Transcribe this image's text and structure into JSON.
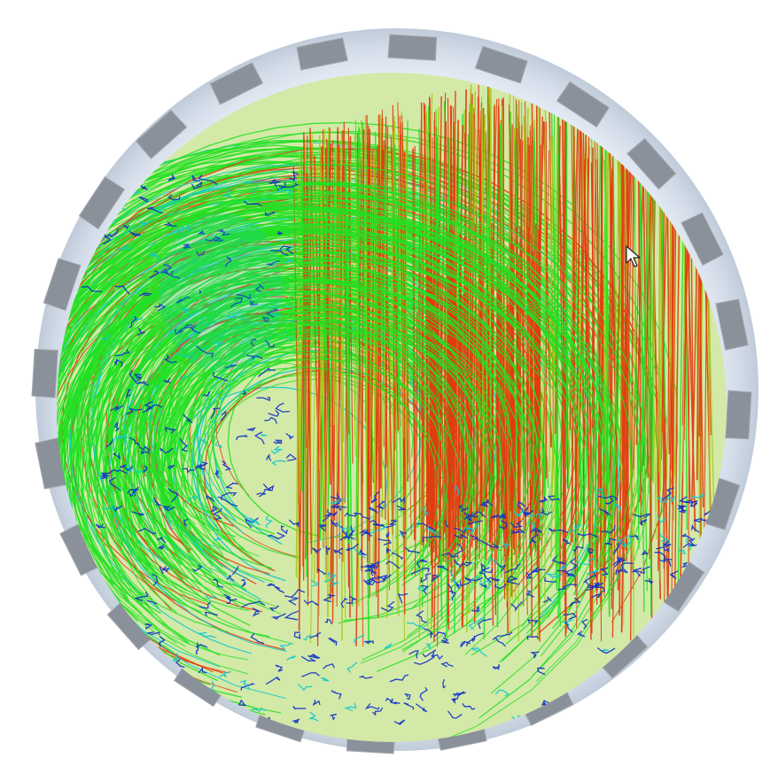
{
  "scene": {
    "kind": "cfd-streamline-visualization",
    "description_type": "3D render, no text",
    "housing": {
      "tooth_count": 24,
      "ring_color": "#dfe7f1",
      "ring_shadow": "#c4cfdd",
      "tooth_color": "#8b919a",
      "tooth_highlight": "#a4a9b0"
    },
    "streamlines": {
      "color_map": [
        "#1030c8",
        "#10c8d0",
        "#22e022",
        "#a8c818",
        "#e23b10"
      ],
      "regions": [
        "swirl-left",
        "vertical-right",
        "lower-turbulent"
      ]
    },
    "cursor": {
      "icon": "pointer-arrow-icon"
    }
  }
}
